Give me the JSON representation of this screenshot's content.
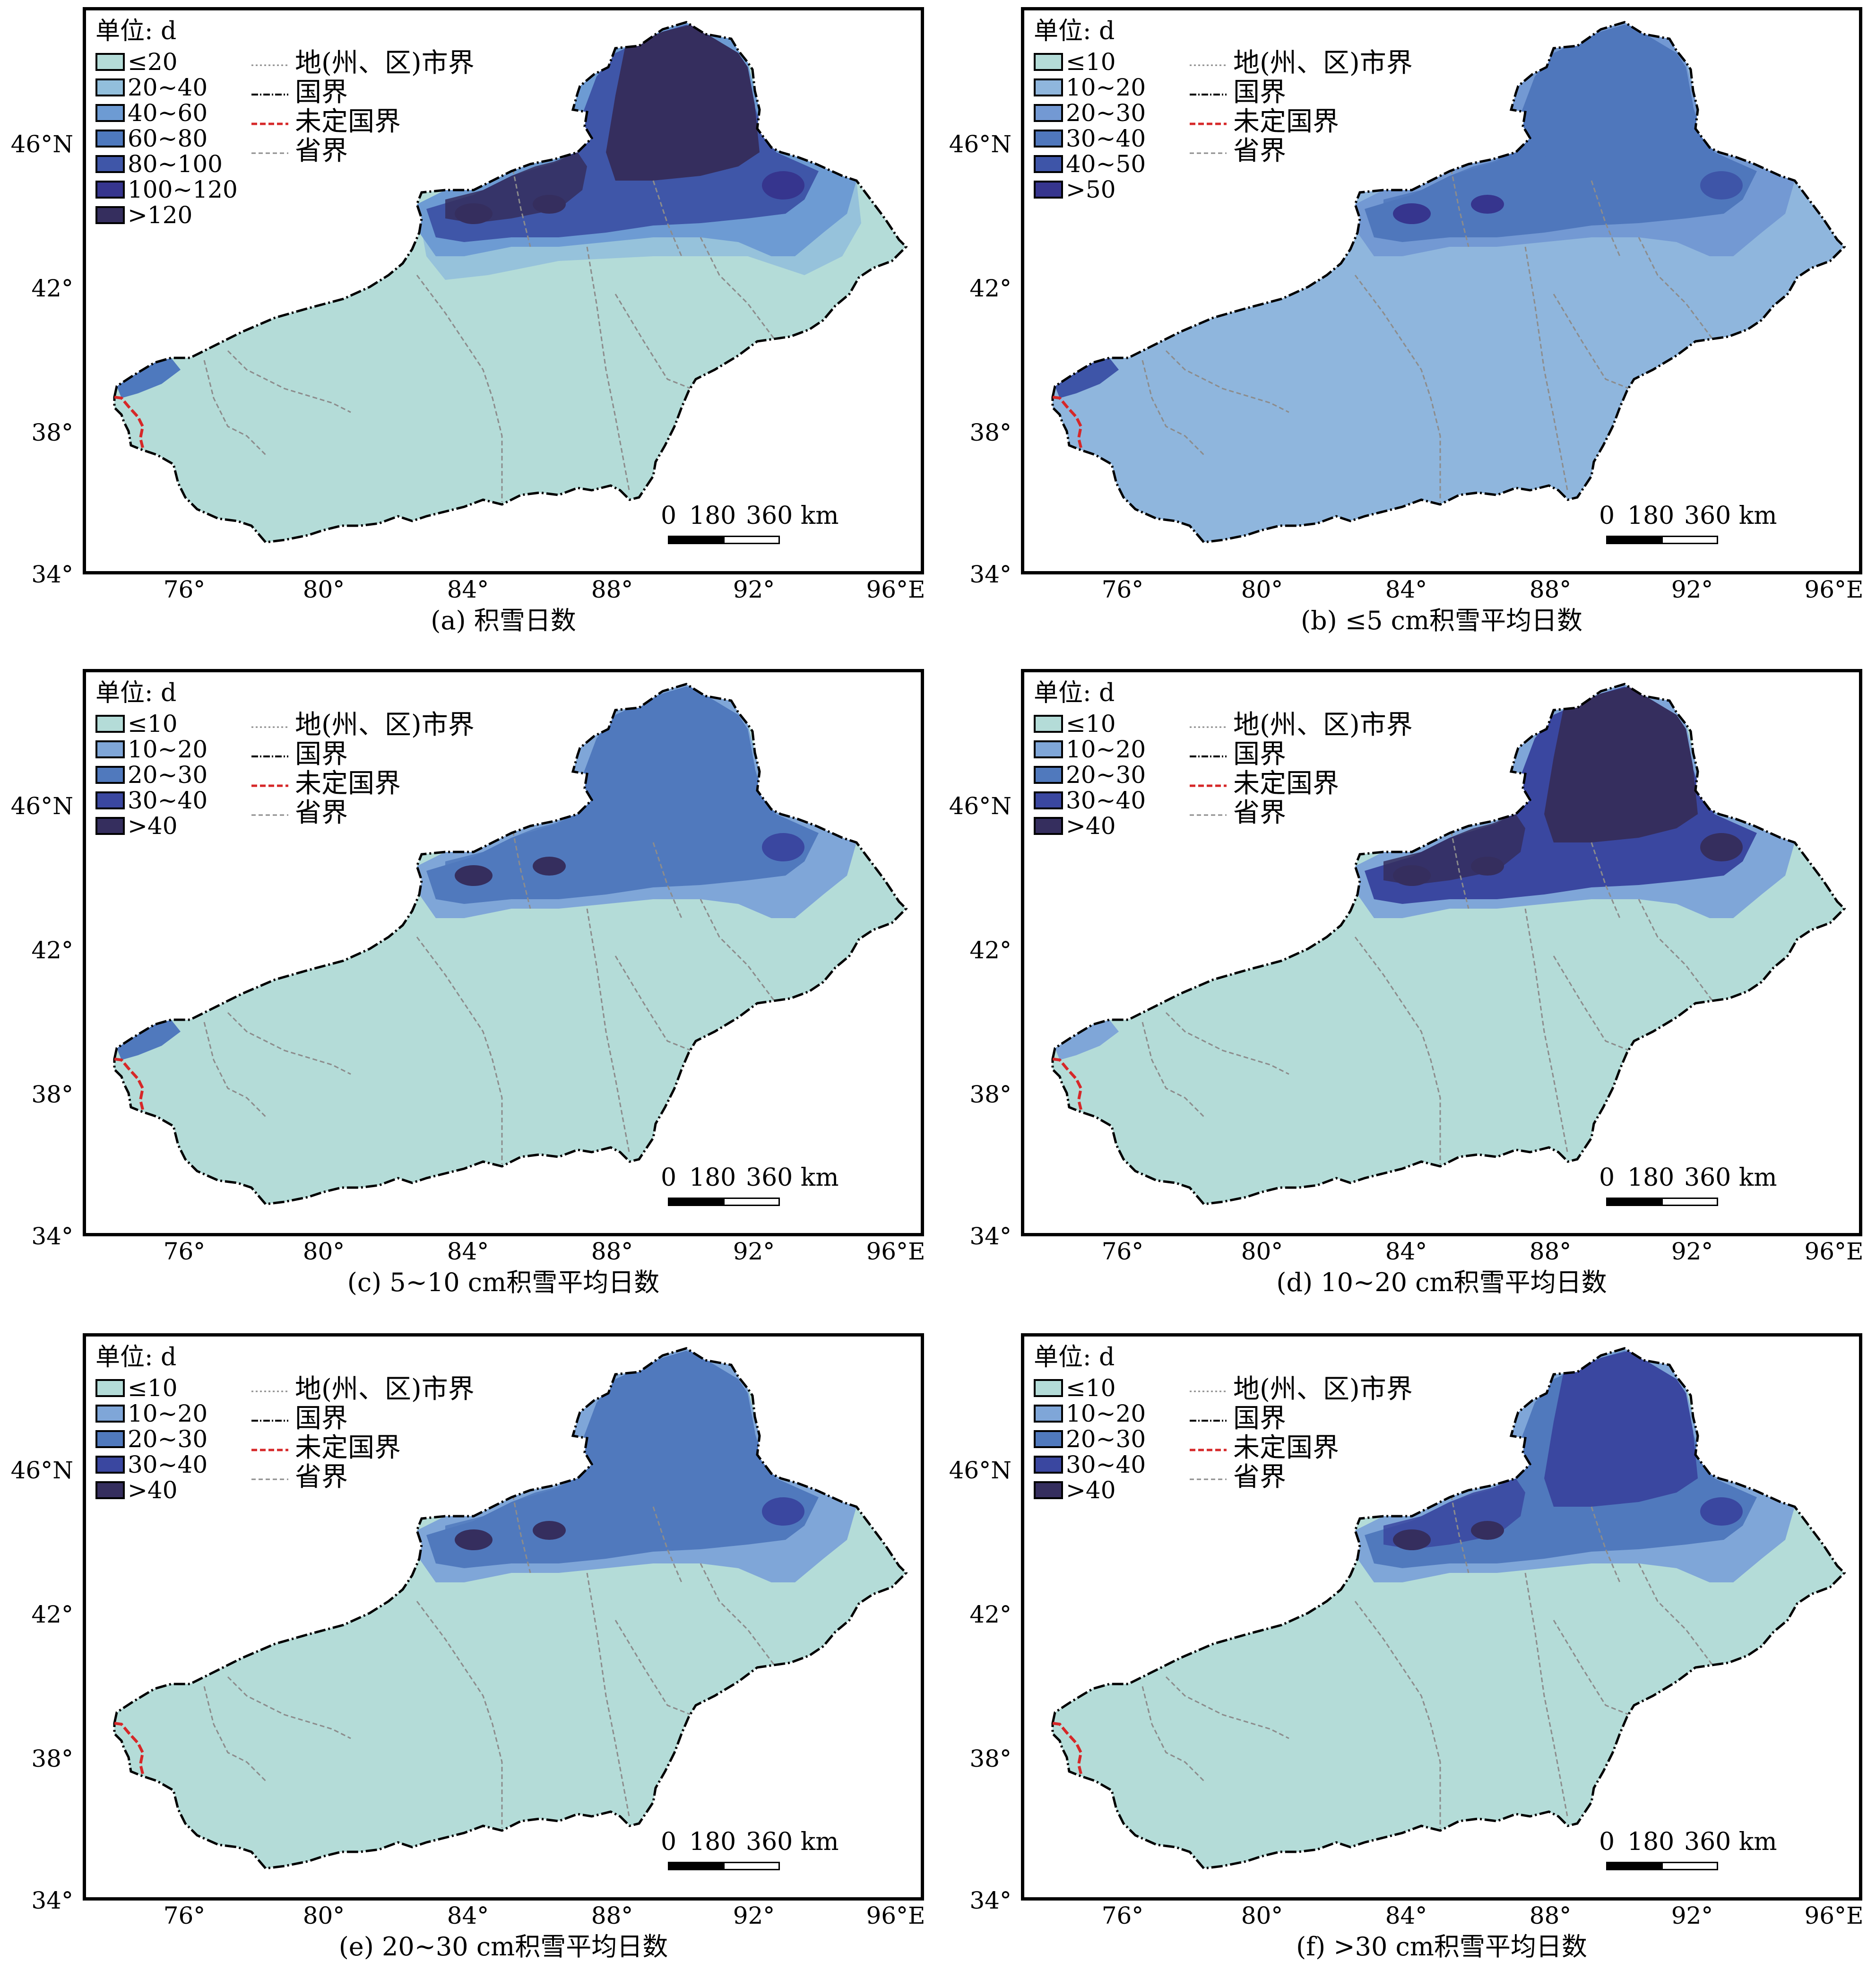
{
  "figure": {
    "panels": [
      {
        "id": "a",
        "caption": "(a) 积雪日数",
        "unit_label": "单位: d",
        "classes": [
          {
            "label": "≤20",
            "color": "#b4dcd8"
          },
          {
            "label": "20~40",
            "color": "#92bfdc"
          },
          {
            "label": "40~60",
            "color": "#6d9bd3"
          },
          {
            "label": "60~80",
            "color": "#4e79be"
          },
          {
            "label": "80~100",
            "color": "#3f56a8"
          },
          {
            "label": "100~120",
            "color": "#36358e"
          },
          {
            "label": ">120",
            "color": "#352e5e"
          }
        ]
      },
      {
        "id": "b",
        "caption": "(b) ≤5 cm积雪平均日数",
        "unit_label": "单位: d",
        "classes": [
          {
            "label": "≤10",
            "color": "#b4dcd8"
          },
          {
            "label": "10~20",
            "color": "#8fb6dd"
          },
          {
            "label": "20~30",
            "color": "#7399d3"
          },
          {
            "label": "30~40",
            "color": "#4f77bc"
          },
          {
            "label": "40~50",
            "color": "#3e55a8"
          },
          {
            "label": ">50",
            "color": "#36358e"
          }
        ]
      },
      {
        "id": "c",
        "caption": "(c) 5~10 cm积雪平均日数",
        "unit_label": "单位: d",
        "classes": [
          {
            "label": "≤10",
            "color": "#b4dcd8"
          },
          {
            "label": "10~20",
            "color": "#7fa6d8"
          },
          {
            "label": "20~30",
            "color": "#5079bd"
          },
          {
            "label": "30~40",
            "color": "#3a47a0"
          },
          {
            "label": ">40",
            "color": "#352e5e"
          }
        ]
      },
      {
        "id": "d",
        "caption": "(d) 10~20 cm积雪平均日数",
        "unit_label": "单位: d",
        "classes": [
          {
            "label": "≤10",
            "color": "#b4dcd8"
          },
          {
            "label": "10~20",
            "color": "#7fa6d8"
          },
          {
            "label": "20~30",
            "color": "#5079bd"
          },
          {
            "label": "30~40",
            "color": "#3a47a0"
          },
          {
            "label": ">40",
            "color": "#352e5e"
          }
        ]
      },
      {
        "id": "e",
        "caption": "(e) 20~30 cm积雪平均日数",
        "unit_label": "单位: d",
        "classes": [
          {
            "label": "≤10",
            "color": "#b4dcd8"
          },
          {
            "label": "10~20",
            "color": "#7fa6d8"
          },
          {
            "label": "20~30",
            "color": "#5079bd"
          },
          {
            "label": "30~40",
            "color": "#3a47a0"
          },
          {
            "label": ">40",
            "color": "#352e5e"
          }
        ]
      },
      {
        "id": "f",
        "caption": "(f) >30 cm积雪平均日数",
        "unit_label": "单位: d",
        "classes": [
          {
            "label": "≤10",
            "color": "#b4dcd8"
          },
          {
            "label": "10~20",
            "color": "#7fa6d8"
          },
          {
            "label": "20~30",
            "color": "#5079bd"
          },
          {
            "label": "30~40",
            "color": "#3a47a0"
          },
          {
            "label": ">40",
            "color": "#352e5e"
          }
        ]
      }
    ],
    "boundary_legend": [
      {
        "label": "地(州、区)市界",
        "style": "dotted-gray"
      },
      {
        "label": "国界",
        "style": "dash-dot-black"
      },
      {
        "label": "未定国界",
        "style": "dash-red"
      },
      {
        "label": "省界",
        "style": "dashed-gray"
      }
    ],
    "scale_bar": {
      "labels": [
        "0",
        "180",
        "360 km"
      ]
    },
    "x_ticks": [
      "76°",
      "80°",
      "84°",
      "88°",
      "92°",
      "96°E"
    ],
    "y_ticks": [
      "46°N",
      "42°",
      "38°",
      "34°"
    ],
    "colors": {
      "base_fill": "#b4dcd8",
      "national_border": "#000000",
      "undetermined_border": "#d62728",
      "internal_border": "#8c8c8c"
    }
  }
}
